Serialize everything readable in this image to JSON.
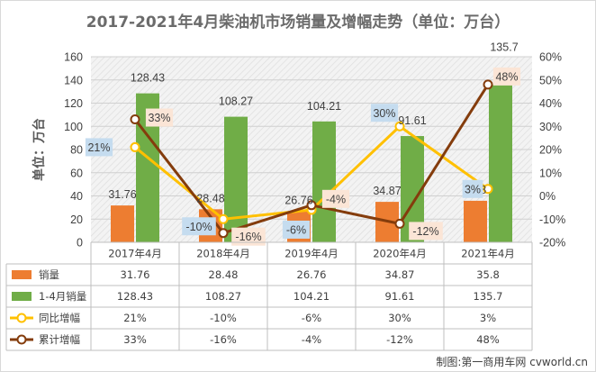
{
  "chart_data": {
    "type": "bar",
    "title": "2017-2021年4月柴油机市场销量及增幅走势（单位：万台）",
    "ylabel": "单位：万台",
    "categories": [
      "2017年4月",
      "2018年4月",
      "2019年4月",
      "2020年4月",
      "2021年4月"
    ],
    "ylim": [
      0,
      160
    ],
    "y2lim": [
      -20,
      60
    ],
    "y_ticks": [
      "0",
      "20",
      "40",
      "60",
      "80",
      "100",
      "120",
      "140",
      "160"
    ],
    "y2_ticks": [
      "-20%",
      "-10%",
      "0%",
      "10%",
      "20%",
      "30%",
      "40%",
      "50%",
      "60%"
    ],
    "series": [
      {
        "name": "销量",
        "type": "bar",
        "axis": "left",
        "color": "#ed7d31",
        "values": [
          31.76,
          28.48,
          26.76,
          34.87,
          35.8
        ],
        "labels": [
          "31.76",
          "28.48",
          "26.76",
          "34.87",
          "35.8"
        ]
      },
      {
        "name": "1-4月销量",
        "type": "bar",
        "axis": "left",
        "color": "#70ad47",
        "values": [
          128.43,
          108.27,
          104.21,
          91.61,
          135.7
        ],
        "labels": [
          "128.43",
          "108.27",
          "104.21",
          "91.61",
          "135.7"
        ]
      },
      {
        "name": "同比增幅",
        "type": "line",
        "axis": "right",
        "color": "#ffc000",
        "label_bg": "#c5dcef",
        "values": [
          21,
          -10,
          -6,
          30,
          3
        ],
        "labels": [
          "21%",
          "-10%",
          "-6%",
          "30%",
          "3%"
        ]
      },
      {
        "name": "累计增幅",
        "type": "line",
        "axis": "right",
        "color": "#843c0c",
        "label_bg": "#fbe5d6",
        "values": [
          33,
          -16,
          -4,
          -12,
          48
        ],
        "labels": [
          "33%",
          "-16%",
          "-4%",
          "-12%",
          "48%"
        ]
      }
    ],
    "grid": true,
    "legend": "data table below chart"
  },
  "credit": "制图:第一商用车网 cvworld.cn"
}
